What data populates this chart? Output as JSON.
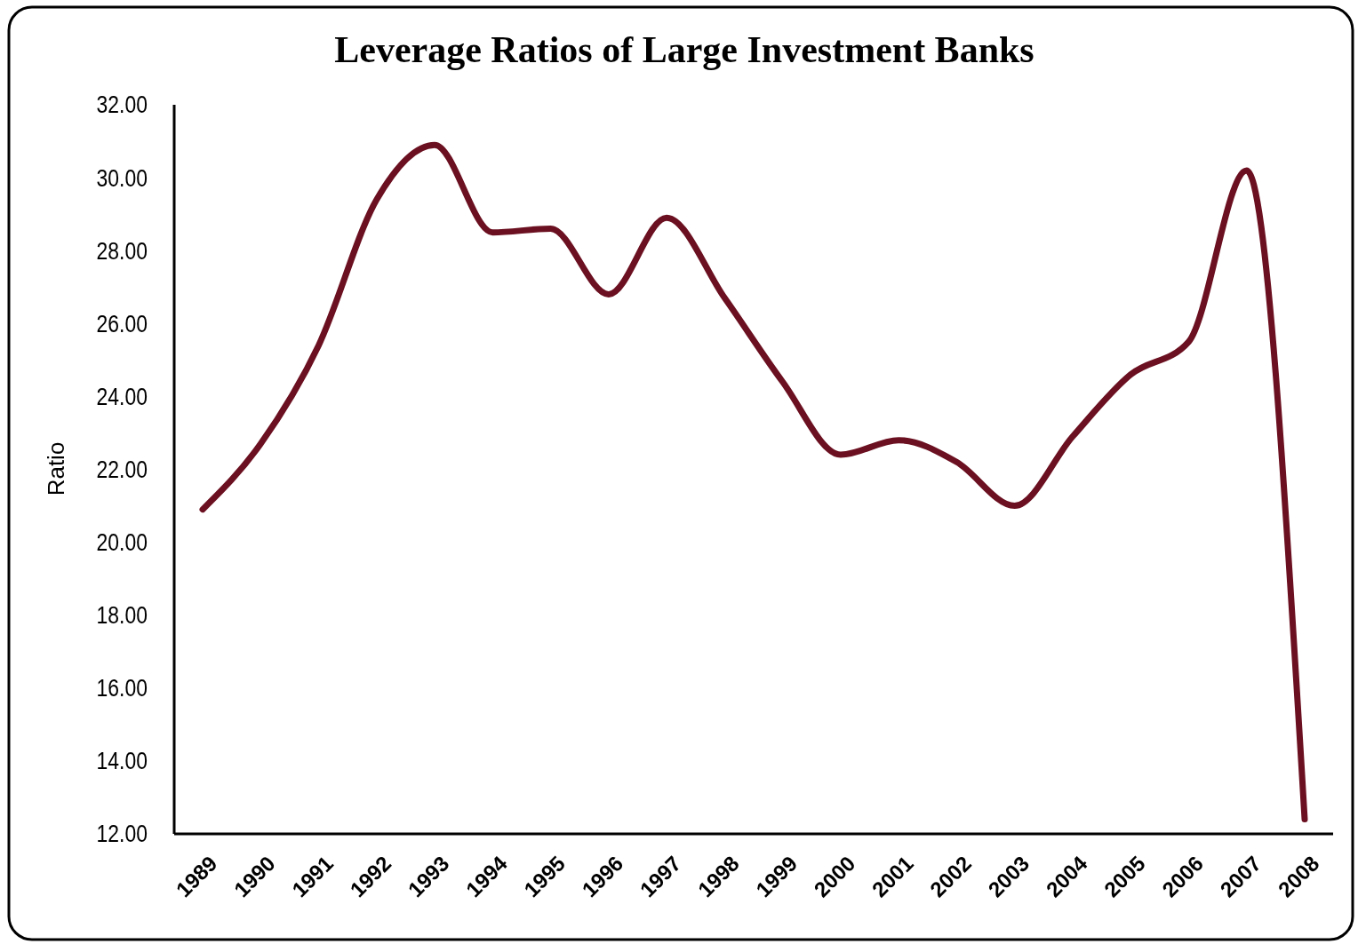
{
  "chart_data": {
    "type": "line",
    "title": "Leverage Ratios of  Large Investment Banks",
    "ylabel": "Ratio",
    "categories": [
      "1989",
      "1990",
      "1991",
      "1992",
      "1993",
      "1994",
      "1995",
      "1996",
      "1997",
      "1998",
      "1999",
      "2000",
      "2001",
      "2002",
      "2003",
      "2004",
      "2005",
      "2006",
      "2007",
      "2008"
    ],
    "series": [
      {
        "color": "#6b1020",
        "values": [
          20.9,
          22.7,
          25.4,
          29.4,
          30.9,
          28.5,
          28.6,
          26.8,
          28.9,
          26.7,
          24.4,
          22.4,
          22.8,
          22.2,
          21.0,
          22.9,
          24.6,
          25.5,
          30.2,
          12.4
        ]
      }
    ],
    "ylim": [
      12,
      32
    ],
    "yticks": [
      {
        "value": 12,
        "label": "12.00"
      },
      {
        "value": 14,
        "label": "14.00"
      },
      {
        "value": 16,
        "label": "16.00"
      },
      {
        "value": 18,
        "label": "18.00"
      },
      {
        "value": 20,
        "label": "20.00"
      },
      {
        "value": 22,
        "label": "22.00"
      },
      {
        "value": 24,
        "label": "24.00"
      },
      {
        "value": 26,
        "label": "26.00"
      },
      {
        "value": 28,
        "label": "28.00"
      },
      {
        "value": 30,
        "label": "30.00"
      },
      {
        "value": 32,
        "label": "32.00"
      }
    ],
    "grid": false,
    "marker": "none",
    "line_style": "solid"
  }
}
